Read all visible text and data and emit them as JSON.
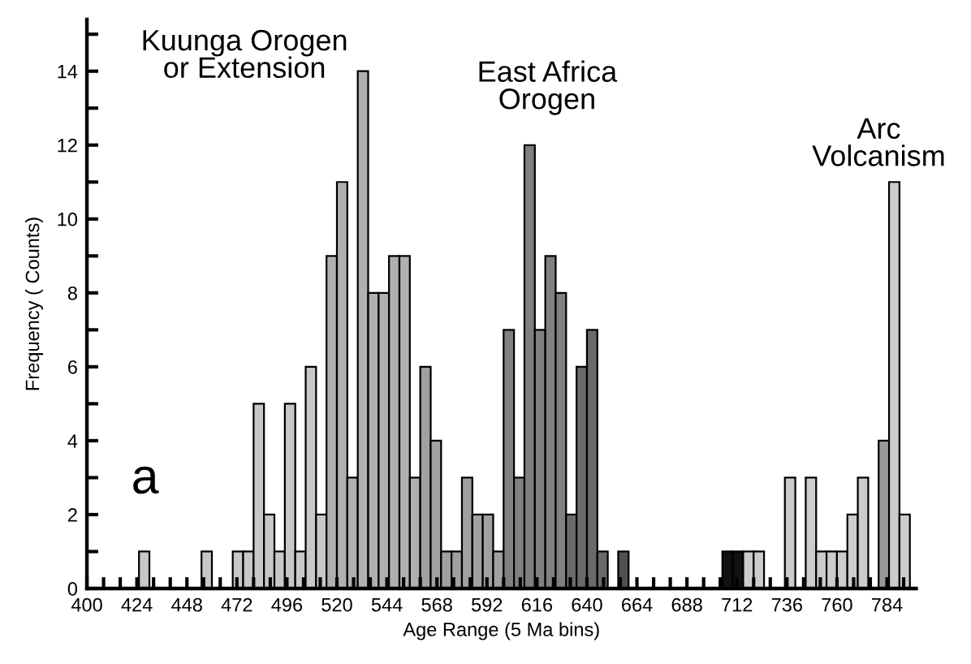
{
  "chart_data": {
    "type": "histogram",
    "xlabel": "Age Range (5 Ma bins)",
    "ylabel": "Frequency ( Counts)",
    "bins": [
      400,
      405,
      410,
      415,
      420,
      425,
      430,
      435,
      440,
      445,
      450,
      455,
      460,
      465,
      470,
      475,
      480,
      485,
      490,
      495,
      500,
      505,
      510,
      515,
      520,
      525,
      530,
      535,
      540,
      545,
      550,
      555,
      560,
      565,
      570,
      575,
      580,
      585,
      590,
      595,
      600,
      605,
      610,
      615,
      620,
      625,
      630,
      635,
      640,
      645,
      650,
      655,
      660,
      665,
      670,
      675,
      680,
      685,
      690,
      695,
      700,
      705,
      710,
      715,
      720,
      725,
      730,
      735,
      740,
      745,
      750,
      755,
      760,
      765,
      770,
      775,
      780,
      785,
      790,
      795
    ],
    "values": [
      0,
      0,
      0,
      0,
      0,
      1,
      0,
      0,
      0,
      0,
      0,
      1,
      0,
      0,
      1,
      1,
      5,
      2,
      1,
      5,
      1,
      6,
      2,
      9,
      11,
      3,
      14,
      8,
      8,
      9,
      9,
      3,
      6,
      4,
      1,
      1,
      3,
      2,
      2,
      1,
      7,
      3,
      12,
      7,
      9,
      8,
      2,
      6,
      7,
      1,
      0,
      1,
      0,
      0,
      0,
      0,
      0,
      0,
      0,
      0,
      0,
      1,
      1,
      1,
      1,
      0,
      0,
      3,
      0,
      3,
      1,
      1,
      1,
      2,
      3,
      0,
      4,
      11,
      2
    ],
    "colors": [
      "#c8c8c8",
      "#c8c8c8",
      "#c8c8c8",
      "#c8c8c8",
      "#c8c8c8",
      "#c8c8c8",
      "#c8c8c8",
      "#c8c8c8",
      "#c8c8c8",
      "#c8c8c8",
      "#c8c8c8",
      "#c8c8c8",
      "#c8c8c8",
      "#c8c8c8",
      "#c8c8c8",
      "#c8c8c8",
      "#c8c8c8",
      "#c8c8c8",
      "#c8c8c8",
      "#c8c8c8",
      "#c8c8c8",
      "#c8c8c8",
      "#c8c8c8",
      "#b0b0b0",
      "#b0b0b0",
      "#b0b0b0",
      "#b0b0b0",
      "#b0b0b0",
      "#b0b0b0",
      "#b0b0b0",
      "#b0b0b0",
      "#b0b0b0",
      "#a0a0a0",
      "#a0a0a0",
      "#a0a0a0",
      "#a0a0a0",
      "#a0a0a0",
      "#a0a0a0",
      "#a0a0a0",
      "#a0a0a0",
      "#808080",
      "#808080",
      "#808080",
      "#808080",
      "#808080",
      "#808080",
      "#6a6a6a",
      "#6a6a6a",
      "#6a6a6a",
      "#6a6a6a",
      "#505050",
      "#505050",
      "#505050",
      "#505050",
      "#505050",
      "#505050",
      "#505050",
      "#505050",
      "#505050",
      "#505050",
      "#505050",
      "#111111",
      "#111111",
      "#cccccc",
      "#cccccc",
      "#cccccc",
      "#cccccc",
      "#cccccc",
      "#cccccc",
      "#cccccc",
      "#cccccc",
      "#cccccc",
      "#cccccc",
      "#cccccc",
      "#cccccc",
      "#cccccc",
      "#999999",
      "#cccccc",
      "#cccccc"
    ],
    "xlim": [
      400,
      798
    ],
    "xticks": [
      400,
      {
        "value": 408,
        "label": null
      },
      {
        "value": 416,
        "label": null
      },
      424,
      {
        "value": 432,
        "label": null
      },
      {
        "value": 440,
        "label": null
      },
      448,
      {
        "value": 456,
        "label": null
      },
      {
        "value": 464,
        "label": null
      },
      472,
      {
        "value": 480,
        "label": null
      },
      {
        "value": 488,
        "label": null
      },
      496,
      {
        "value": 504,
        "label": null
      },
      {
        "value": 512,
        "label": null
      },
      520,
      {
        "value": 528,
        "label": null
      },
      {
        "value": 536,
        "label": null
      },
      544,
      {
        "value": 552,
        "label": null
      },
      {
        "value": 560,
        "label": null
      },
      568,
      {
        "value": 576,
        "label": null
      },
      {
        "value": 584,
        "label": null
      },
      592,
      {
        "value": 600,
        "label": null
      },
      {
        "value": 608,
        "label": null
      },
      616,
      {
        "value": 624,
        "label": null
      },
      {
        "value": 632,
        "label": null
      },
      640,
      {
        "value": 648,
        "label": null
      },
      {
        "value": 656,
        "label": null
      },
      664,
      {
        "value": 672,
        "label": null
      },
      {
        "value": 680,
        "label": null
      },
      688,
      {
        "value": 696,
        "label": null
      },
      {
        "value": 704,
        "label": null
      },
      712,
      {
        "value": 720,
        "label": null
      },
      {
        "value": 728,
        "label": null
      },
      736,
      {
        "value": 744,
        "label": null
      },
      {
        "value": 752,
        "label": null
      },
      760,
      {
        "value": 768,
        "label": null
      },
      {
        "value": 776,
        "label": null
      },
      784,
      {
        "value": 792,
        "label": null
      }
    ],
    "ylim": [
      0,
      15.4
    ],
    "yticks": [
      0,
      {
        "value": 1,
        "label": null
      },
      2,
      {
        "value": 3,
        "label": null
      },
      4,
      {
        "value": 5,
        "label": null
      },
      6,
      {
        "value": 7,
        "label": null
      },
      8,
      {
        "value": 9,
        "label": null
      },
      10,
      {
        "value": 11,
        "label": null
      },
      12,
      {
        "value": 13,
        "label": null
      },
      14,
      {
        "value": 15,
        "label": null
      }
    ],
    "grid": false,
    "annotations": [
      "Kuunga Orogen\nor Extension",
      "East Africa\nOrogen",
      "Arc\nVolcanism",
      "a"
    ]
  }
}
